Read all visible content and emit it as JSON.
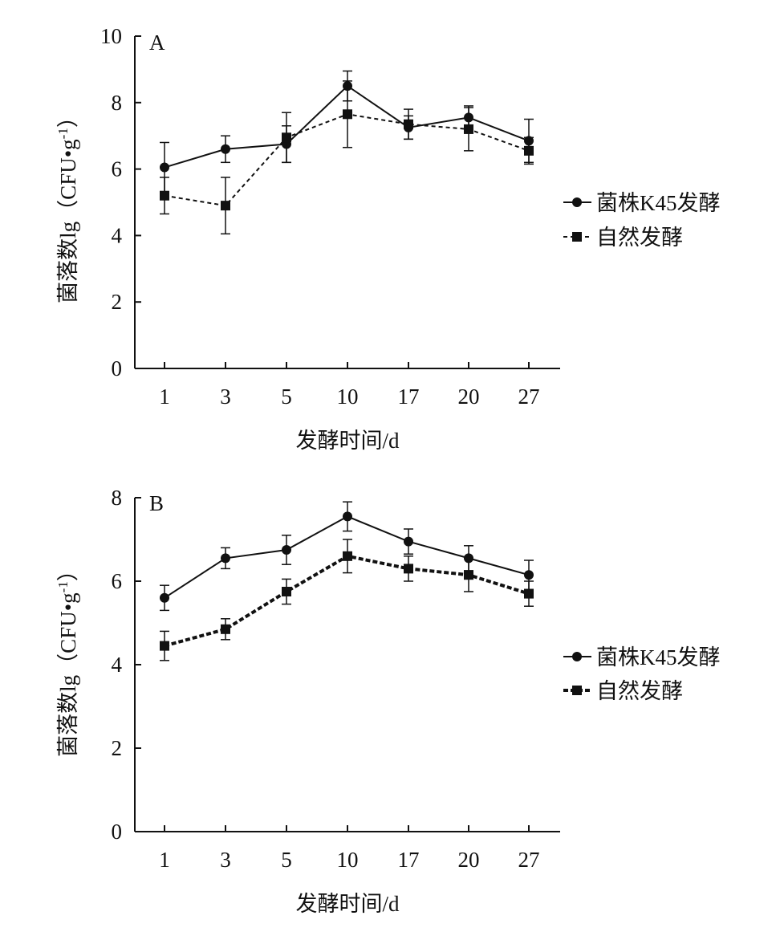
{
  "colors": {
    "ink": "#111111",
    "background": "#ffffff"
  },
  "chart_data": [
    {
      "type": "line",
      "panel_label": "A",
      "categories": [
        "1",
        "3",
        "5",
        "10",
        "17",
        "20",
        "27"
      ],
      "xlabel": "发酵时间/d",
      "ylabel_main": "菌落数lg",
      "ylabel_unit": "（CFU",
      "ylabel_dot": "•",
      "ylabel_g": "g",
      "ylabel_sup": "-1",
      "ylabel_close": "）",
      "ylim": [
        0,
        10
      ],
      "yticks": [
        0,
        2,
        4,
        6,
        8,
        10
      ],
      "ytick_labels": [
        "0",
        "2",
        "4",
        "6",
        "8",
        "10"
      ],
      "legend_position": "right",
      "series": [
        {
          "name": "菌株K45发酵",
          "marker": "circle",
          "line": "solid",
          "values": [
            6.05,
            6.6,
            6.75,
            8.5,
            7.25,
            7.55,
            6.85
          ],
          "errors": [
            0.75,
            0.4,
            0.55,
            0.45,
            0.35,
            0.35,
            0.65
          ]
        },
        {
          "name": "自然发酵",
          "marker": "square",
          "line": "dashed",
          "values": [
            5.2,
            4.9,
            6.95,
            7.65,
            7.35,
            7.2,
            6.55
          ],
          "errors": [
            0.55,
            0.85,
            0.75,
            1.0,
            0.45,
            0.65,
            0.4
          ]
        }
      ]
    },
    {
      "type": "line",
      "panel_label": "B",
      "categories": [
        "1",
        "3",
        "5",
        "10",
        "17",
        "20",
        "27"
      ],
      "xlabel": "发酵时间/d",
      "ylabel_main": "菌落数lg",
      "ylabel_unit": "（CFU",
      "ylabel_dot": "•",
      "ylabel_g": "g",
      "ylabel_sup": "-1",
      "ylabel_close": "）",
      "ylim": [
        0,
        8
      ],
      "yticks": [
        0,
        2,
        4,
        6,
        8
      ],
      "ytick_labels": [
        "0",
        "2",
        "4",
        "6",
        "8"
      ],
      "legend_position": "right",
      "series": [
        {
          "name": "菌株K45发酵",
          "marker": "circle",
          "line": "solid",
          "values": [
            5.6,
            6.55,
            6.75,
            7.55,
            6.95,
            6.55,
            6.15
          ],
          "errors": [
            0.3,
            0.25,
            0.35,
            0.35,
            0.3,
            0.3,
            0.35
          ]
        },
        {
          "name": "自然发酵",
          "marker": "square",
          "line": "dashed-bold",
          "values": [
            4.45,
            4.85,
            5.75,
            6.6,
            6.3,
            6.15,
            5.7
          ],
          "errors": [
            0.35,
            0.25,
            0.3,
            0.4,
            0.3,
            0.4,
            0.3
          ]
        }
      ]
    }
  ]
}
